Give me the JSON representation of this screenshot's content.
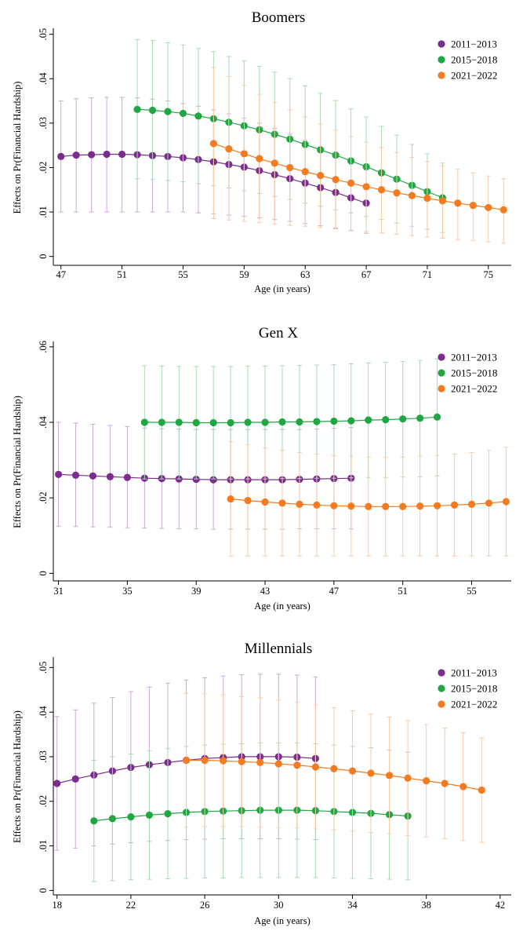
{
  "chart_data": [
    {
      "type": "scatter",
      "title": "Boomers",
      "xlabel": "Age (in years)",
      "ylabel": "Effects on Pr(Financial Hardship)",
      "xlim": [
        46.5,
        76.5
      ],
      "ylim": [
        -0.002,
        0.051
      ],
      "xticks": [
        47,
        51,
        55,
        59,
        63,
        67,
        71,
        75
      ],
      "yticks": [
        0,
        0.01,
        0.02,
        0.03,
        0.04,
        0.05
      ],
      "ytick_labels": [
        "0",
        ".01",
        ".02",
        ".03",
        ".04",
        ".05"
      ],
      "legend_position": "top-right",
      "series": [
        {
          "name": "2011−2013",
          "color": "#7B2D8E",
          "x": [
            47,
            48,
            49,
            50,
            51,
            52,
            53,
            54,
            55,
            56,
            57,
            58,
            59,
            60,
            61,
            62,
            63,
            64,
            65,
            66,
            67
          ],
          "y": [
            0.0225,
            0.0228,
            0.0229,
            0.023,
            0.023,
            0.0229,
            0.0227,
            0.0225,
            0.0222,
            0.0218,
            0.0213,
            0.0207,
            0.0201,
            0.0193,
            0.0184,
            0.0175,
            0.0165,
            0.0155,
            0.0144,
            0.0132,
            0.012
          ],
          "lo": [
            0.01,
            0.01,
            0.01,
            0.01,
            0.01,
            0.01,
            0.01,
            0.01,
            0.01,
            0.0098,
            0.0096,
            0.0093,
            0.009,
            0.0087,
            0.0083,
            0.0079,
            0.0074,
            0.0069,
            0.0064,
            0.0058,
            0.0052
          ],
          "hi": [
            0.035,
            0.0355,
            0.0357,
            0.0358,
            0.0358,
            0.0357,
            0.0354,
            0.035,
            0.0344,
            0.0338,
            0.033,
            0.0321,
            0.0311,
            0.03,
            0.0288,
            0.0275,
            0.0261,
            0.0246,
            0.023,
            0.0213,
            0.0195
          ]
        },
        {
          "name": "2015−2018",
          "color": "#1FA744",
          "x": [
            52,
            53,
            54,
            55,
            56,
            57,
            58,
            59,
            60,
            61,
            62,
            63,
            64,
            65,
            66,
            67,
            68,
            69,
            70,
            71,
            72
          ],
          "y": [
            0.0331,
            0.0329,
            0.0326,
            0.0322,
            0.0316,
            0.031,
            0.0302,
            0.0294,
            0.0285,
            0.0275,
            0.0264,
            0.0252,
            0.024,
            0.0228,
            0.0215,
            0.0202,
            0.0188,
            0.0174,
            0.016,
            0.0146,
            0.0132
          ],
          "lo": [
            0.0175,
            0.0173,
            0.0171,
            0.0168,
            0.0164,
            0.0159,
            0.0154,
            0.0148,
            0.0142,
            0.0135,
            0.0128,
            0.012,
            0.0113,
            0.0105,
            0.0098,
            0.009,
            0.0083,
            0.0075,
            0.0068,
            0.0061,
            0.0054
          ],
          "hi": [
            0.0488,
            0.0486,
            0.0481,
            0.0476,
            0.0468,
            0.0461,
            0.045,
            0.044,
            0.0428,
            0.0415,
            0.04,
            0.0384,
            0.0367,
            0.0351,
            0.0332,
            0.0314,
            0.0293,
            0.0273,
            0.0252,
            0.0231,
            0.021
          ]
        },
        {
          "name": "2021−2022",
          "color": "#F47B20",
          "x": [
            57,
            58,
            59,
            60,
            61,
            62,
            63,
            64,
            65,
            66,
            67,
            68,
            69,
            70,
            71,
            72,
            73,
            74,
            75,
            76
          ],
          "y": [
            0.0254,
            0.0242,
            0.0231,
            0.022,
            0.021,
            0.02,
            0.0191,
            0.0182,
            0.0173,
            0.0165,
            0.0157,
            0.015,
            0.0143,
            0.0137,
            0.0131,
            0.0125,
            0.012,
            0.0115,
            0.011,
            0.0105
          ],
          "lo": [
            0.0085,
            0.0082,
            0.0079,
            0.0076,
            0.0073,
            0.007,
            0.0068,
            0.0065,
            0.0062,
            0.0059,
            0.0056,
            0.0053,
            0.005,
            0.0047,
            0.0044,
            0.0041,
            0.0038,
            0.0036,
            0.0033,
            0.003
          ],
          "hi": [
            0.0425,
            0.0405,
            0.0385,
            0.0365,
            0.0347,
            0.033,
            0.0314,
            0.0298,
            0.0284,
            0.027,
            0.0257,
            0.0245,
            0.0234,
            0.0223,
            0.0213,
            0.0204,
            0.0196,
            0.0188,
            0.0181,
            0.0175
          ]
        }
      ]
    },
    {
      "type": "scatter",
      "title": "Gen X",
      "xlabel": "Age (in years)",
      "ylabel": "Effects on Pr(Financial Hardship)",
      "xlim": [
        30.7,
        57.3
      ],
      "ylim": [
        -0.002,
        0.061
      ],
      "xticks": [
        31,
        35,
        39,
        43,
        47,
        51,
        55
      ],
      "yticks": [
        0,
        0.02,
        0.04,
        0.06
      ],
      "ytick_labels": [
        "0",
        ".02",
        ".04",
        ".06"
      ],
      "legend_position": "top-right",
      "series": [
        {
          "name": "2011−2013",
          "color": "#7B2D8E",
          "x": [
            31,
            32,
            33,
            34,
            35,
            36,
            37,
            38,
            39,
            40,
            41,
            42,
            43,
            44,
            45,
            46,
            47,
            48
          ],
          "y": [
            0.0262,
            0.026,
            0.0258,
            0.0256,
            0.0254,
            0.0252,
            0.0251,
            0.025,
            0.0249,
            0.0248,
            0.0248,
            0.0248,
            0.0248,
            0.0248,
            0.0249,
            0.025,
            0.0251,
            0.0252
          ],
          "lo": [
            0.0125,
            0.0124,
            0.0123,
            0.0122,
            0.0121,
            0.012,
            0.0119,
            0.0118,
            0.0118,
            0.0117,
            0.0117,
            0.0117,
            0.0117,
            0.0117,
            0.0118,
            0.0118,
            0.0118,
            0.0118
          ],
          "hi": [
            0.04,
            0.0398,
            0.0395,
            0.0392,
            0.0389,
            0.0385,
            0.0383,
            0.0382,
            0.0381,
            0.0381,
            0.0381,
            0.0381,
            0.0381,
            0.0381,
            0.0381,
            0.0382,
            0.0384,
            0.0386
          ]
        },
        {
          "name": "2015−2018",
          "color": "#1FA744",
          "x": [
            36,
            37,
            38,
            39,
            40,
            41,
            42,
            43,
            44,
            45,
            46,
            47,
            48,
            49,
            50,
            51,
            52,
            53
          ],
          "y": [
            0.04,
            0.04,
            0.04,
            0.0399,
            0.0399,
            0.0399,
            0.04,
            0.04,
            0.0401,
            0.0401,
            0.0402,
            0.0403,
            0.0404,
            0.0406,
            0.0407,
            0.0409,
            0.0411,
            0.0414
          ],
          "lo": [
            0.025,
            0.025,
            0.025,
            0.025,
            0.025,
            0.025,
            0.025,
            0.025,
            0.0251,
            0.0251,
            0.0252,
            0.0252,
            0.0253,
            0.0254,
            0.0254,
            0.0255,
            0.0256,
            0.0258
          ],
          "hi": [
            0.055,
            0.0549,
            0.0548,
            0.0548,
            0.0548,
            0.0548,
            0.0549,
            0.0549,
            0.055,
            0.0551,
            0.0552,
            0.0553,
            0.0555,
            0.0557,
            0.0559,
            0.0561,
            0.0564,
            0.0568
          ]
        },
        {
          "name": "2021−2022",
          "color": "#F47B20",
          "x": [
            41,
            42,
            43,
            44,
            45,
            46,
            47,
            48,
            49,
            50,
            51,
            52,
            53,
            54,
            55,
            56,
            57
          ],
          "y": [
            0.0197,
            0.0193,
            0.0189,
            0.0186,
            0.0183,
            0.0181,
            0.0179,
            0.0178,
            0.0177,
            0.0177,
            0.0177,
            0.0178,
            0.0179,
            0.0181,
            0.0183,
            0.0186,
            0.019
          ],
          "lo": [
            0.0045,
            0.0046,
            0.0046,
            0.0046,
            0.0046,
            0.0046,
            0.0046,
            0.0046,
            0.0046,
            0.0046,
            0.0046,
            0.0046,
            0.0046,
            0.0046,
            0.0046,
            0.0046,
            0.0046
          ],
          "hi": [
            0.0349,
            0.0341,
            0.0332,
            0.0326,
            0.032,
            0.0316,
            0.0312,
            0.031,
            0.0308,
            0.0308,
            0.0308,
            0.031,
            0.0312,
            0.0316,
            0.032,
            0.0326,
            0.0334
          ]
        }
      ]
    },
    {
      "type": "scatter",
      "title": "Millennials",
      "xlabel": "Age (in years)",
      "ylabel": "Effects on Pr(Financial Hardship)",
      "xlim": [
        17.8,
        42.6
      ],
      "ylim": [
        -0.001,
        0.052
      ],
      "xticks": [
        18,
        22,
        26,
        30,
        34,
        38,
        42
      ],
      "yticks": [
        0,
        0.01,
        0.02,
        0.03,
        0.04,
        0.05
      ],
      "ytick_labels": [
        "0",
        ".01",
        ".02",
        ".03",
        ".04",
        ".05"
      ],
      "legend_position": "top-right",
      "series": [
        {
          "name": "2011−2013",
          "color": "#7B2D8E",
          "x": [
            18,
            19,
            20,
            21,
            22,
            23,
            24,
            25,
            26,
            27,
            28,
            29,
            30,
            31,
            32
          ],
          "y": [
            0.024,
            0.025,
            0.0259,
            0.0268,
            0.0276,
            0.0282,
            0.0287,
            0.0292,
            0.0296,
            0.0298,
            0.03,
            0.03,
            0.03,
            0.0299,
            0.0296
          ],
          "lo": [
            0.009,
            0.0095,
            0.01,
            0.0104,
            0.0107,
            0.011,
            0.0112,
            0.0114,
            0.0115,
            0.0116,
            0.0116,
            0.0116,
            0.0116,
            0.0115,
            0.0114
          ],
          "hi": [
            0.039,
            0.0405,
            0.042,
            0.0433,
            0.0446,
            0.0456,
            0.0465,
            0.0472,
            0.0477,
            0.0481,
            0.0484,
            0.0485,
            0.0485,
            0.0483,
            0.0479
          ]
        },
        {
          "name": "2015−2018",
          "color": "#1FA744",
          "x": [
            20,
            21,
            22,
            23,
            24,
            25,
            26,
            27,
            28,
            29,
            30,
            31,
            32,
            33,
            34,
            35,
            36,
            37
          ],
          "y": [
            0.0156,
            0.0161,
            0.0165,
            0.0169,
            0.0172,
            0.0175,
            0.0177,
            0.0178,
            0.0179,
            0.018,
            0.018,
            0.018,
            0.0179,
            0.0177,
            0.0175,
            0.0173,
            0.017,
            0.0167
          ],
          "lo": [
            0.002,
            0.0022,
            0.0024,
            0.0025,
            0.0026,
            0.0027,
            0.0028,
            0.0028,
            0.0029,
            0.0029,
            0.0029,
            0.0029,
            0.0029,
            0.0028,
            0.0027,
            0.0026,
            0.0025,
            0.0024
          ],
          "hi": [
            0.0292,
            0.03,
            0.0306,
            0.0313,
            0.0318,
            0.0323,
            0.0326,
            0.0328,
            0.0329,
            0.0331,
            0.0331,
            0.0331,
            0.0329,
            0.0326,
            0.0323,
            0.032,
            0.0315,
            0.031
          ]
        },
        {
          "name": "2021−2022",
          "color": "#F47B20",
          "x": [
            25,
            26,
            27,
            28,
            29,
            30,
            31,
            32,
            33,
            34,
            35,
            36,
            37,
            38,
            39,
            40,
            41
          ],
          "y": [
            0.0292,
            0.0292,
            0.0291,
            0.0289,
            0.0287,
            0.0284,
            0.0281,
            0.0277,
            0.0273,
            0.0268,
            0.0263,
            0.0258,
            0.0252,
            0.0246,
            0.024,
            0.0233,
            0.0225
          ],
          "lo": [
            0.0142,
            0.0143,
            0.0143,
            0.0143,
            0.0142,
            0.0141,
            0.014,
            0.0138,
            0.0136,
            0.0133,
            0.013,
            0.0127,
            0.0123,
            0.012,
            0.0116,
            0.0112,
            0.0108
          ],
          "hi": [
            0.0442,
            0.0441,
            0.0439,
            0.0435,
            0.0432,
            0.0427,
            0.0422,
            0.0416,
            0.041,
            0.0403,
            0.0396,
            0.0389,
            0.0381,
            0.0372,
            0.0364,
            0.0354,
            0.0342
          ]
        }
      ]
    }
  ]
}
